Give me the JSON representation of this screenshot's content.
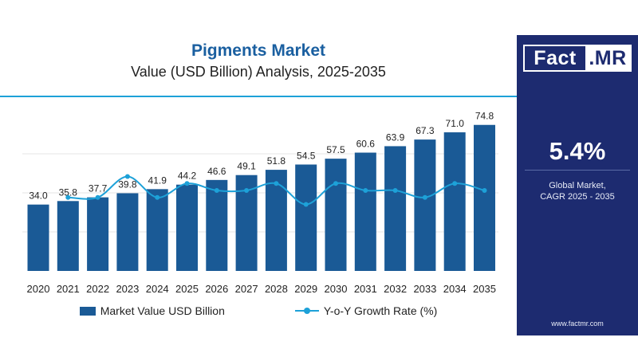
{
  "brand": {
    "logo_left": "Fact",
    "logo_right": ".MR",
    "website": "www.factmr.com"
  },
  "side_panel": {
    "cagr_value": "5.4%",
    "cagr_label_line1": "Global Market,",
    "cagr_label_line2": "CAGR 2025 - 2035"
  },
  "colors": {
    "bar": "#1a5a96",
    "growth_line": "#1da1d8",
    "title": "#1a5fa0",
    "panel": "#1d2b70",
    "accent_rule": "#1da1d8"
  },
  "chart_data": {
    "type": "bar",
    "title": "Pigments Market",
    "subtitle": "Value (USD Billion) Analysis, 2025-2035",
    "categories": [
      "2020",
      "2021",
      "2022",
      "2023",
      "2024",
      "2025",
      "2026",
      "2027",
      "2028",
      "2029",
      "2030",
      "2031",
      "2032",
      "2033",
      "2034",
      "2035"
    ],
    "series": [
      {
        "name": "Market Value USD Billion",
        "type": "bar",
        "values": [
          34.0,
          35.8,
          37.7,
          39.8,
          41.9,
          44.2,
          46.6,
          49.1,
          51.8,
          54.5,
          57.5,
          60.6,
          63.9,
          67.3,
          71.0,
          74.8
        ],
        "labels": [
          "34.0",
          "35.8",
          "37.7",
          "39.8",
          "41.9",
          "44.2",
          "46.6",
          "49.1",
          "51.8",
          "54.5",
          "57.5",
          "60.6",
          "63.9",
          "67.3",
          "71.0",
          "74.8"
        ]
      },
      {
        "name": "Y-o-Y Growth Rate (%)",
        "type": "line",
        "values": [
          null,
          5.3,
          5.3,
          5.6,
          5.3,
          5.5,
          5.4,
          5.4,
          5.5,
          5.2,
          5.5,
          5.4,
          5.4,
          5.3,
          5.5,
          5.4
        ]
      }
    ],
    "ylim": [
      0,
      80
    ],
    "grid": true,
    "legend_position": "bottom"
  }
}
